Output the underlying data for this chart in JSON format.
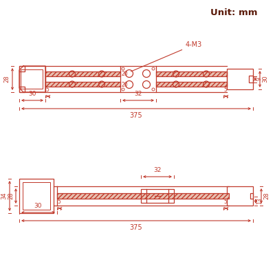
{
  "bg_color": "#ffffff",
  "line_color": "#c0392b",
  "text_color": "#c0392b",
  "dark_text_color": "#5a1a0a",
  "hatch_fill": "#e8c0b0",
  "title": "Unit: mm"
}
